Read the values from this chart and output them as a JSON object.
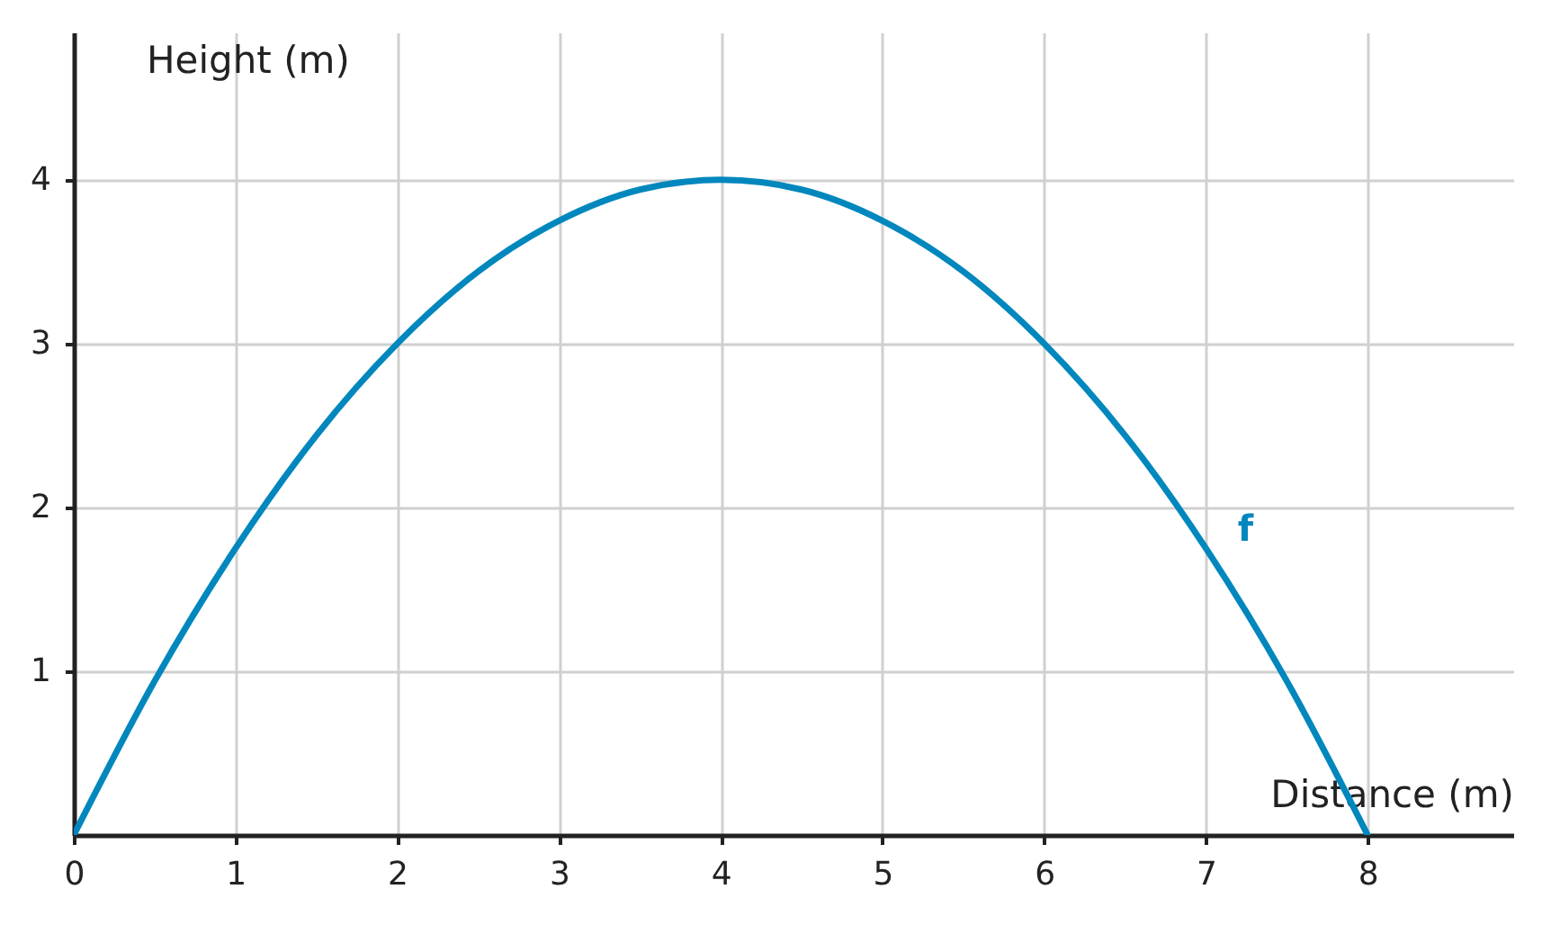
{
  "chart_data": {
    "type": "line",
    "xlabel": "Distance (m)",
    "ylabel": "Height (m)",
    "x": [
      0,
      0.5,
      1,
      1.5,
      2,
      2.5,
      3,
      3.5,
      4,
      4.5,
      5,
      5.5,
      6,
      6.5,
      7,
      7.5,
      8
    ],
    "series": [
      {
        "name": "f",
        "color": "#0087bd",
        "values": [
          0,
          0.94,
          1.75,
          2.44,
          3,
          3.44,
          3.75,
          3.94,
          4,
          3.94,
          3.75,
          3.44,
          3,
          2.44,
          1.75,
          0.94,
          0
        ]
      }
    ],
    "xlim": [
      0,
      8.9
    ],
    "ylim": [
      0,
      4.9
    ],
    "xticks": [
      0,
      1,
      2,
      3,
      4,
      5,
      6,
      7,
      8
    ],
    "yticks": [
      1,
      2,
      3,
      4
    ],
    "grid": true,
    "marker": "none",
    "line_style": "solid"
  }
}
